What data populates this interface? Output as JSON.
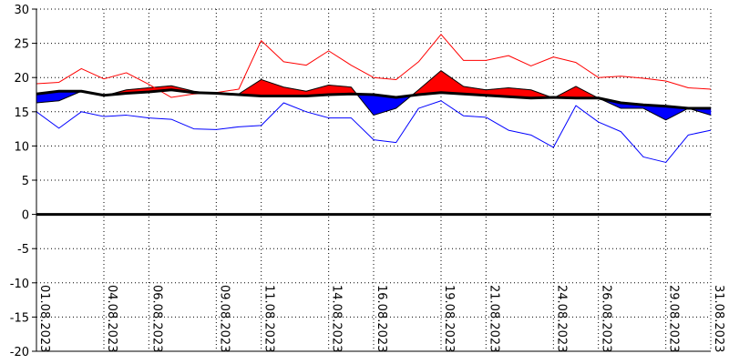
{
  "chart_data": {
    "type": "line",
    "title": "",
    "xlabel": "",
    "ylabel": "",
    "ylim": [
      -20,
      30
    ],
    "yticks": [
      -20,
      -15,
      -10,
      -5,
      0,
      5,
      10,
      15,
      20,
      25,
      30
    ],
    "grid": "dotted",
    "zero_line": true,
    "colors": {
      "max_line": "#ff0000",
      "min_line": "#0000ff",
      "above_fill": "#ff0000",
      "below_fill": "#0000ff",
      "reference_line": "#000000"
    },
    "x_tick_labels": [
      {
        "day": 1,
        "label": "01.08.2023"
      },
      {
        "day": 4,
        "label": "04.08.2023"
      },
      {
        "day": 6,
        "label": "06.08.2023"
      },
      {
        "day": 9,
        "label": "09.08.2023"
      },
      {
        "day": 11,
        "label": "11.08.2023"
      },
      {
        "day": 14,
        "label": "14.08.2023"
      },
      {
        "day": 16,
        "label": "16.08.2023"
      },
      {
        "day": 19,
        "label": "19.08.2023"
      },
      {
        "day": 21,
        "label": "21.08.2023"
      },
      {
        "day": 24,
        "label": "24.08.2023"
      },
      {
        "day": 26,
        "label": "26.08.2023"
      },
      {
        "day": 29,
        "label": "29.08.2023"
      },
      {
        "day": 31,
        "label": "31.08.2023"
      }
    ],
    "x": [
      1,
      2,
      3,
      4,
      5,
      6,
      7,
      8,
      9,
      10,
      11,
      12,
      13,
      14,
      15,
      16,
      17,
      18,
      19,
      20,
      21,
      22,
      23,
      24,
      25,
      26,
      27,
      28,
      29,
      30,
      31
    ],
    "series": [
      {
        "values": [
          19.1,
          19.3,
          21.3,
          19.8,
          20.7,
          19.0,
          17.1,
          17.6,
          17.8,
          18.3,
          25.4,
          22.3,
          21.8,
          23.9,
          21.8,
          20.0,
          19.7,
          22.3,
          26.3,
          22.5,
          22.5,
          23.2,
          21.7,
          23.0,
          22.2,
          20.0,
          20.2,
          19.9,
          19.5,
          18.5,
          18.3
        ]
      },
      {
        "values": [
          15.0,
          12.6,
          15.0,
          14.3,
          14.5,
          14.1,
          13.9,
          12.5,
          12.4,
          12.8,
          13.0,
          16.3,
          15.0,
          14.1,
          14.1,
          10.9,
          10.5,
          15.5,
          16.6,
          14.4,
          14.2,
          12.3,
          11.6,
          9.8,
          15.9,
          13.5,
          12.1,
          8.4,
          7.6,
          11.6,
          12.3
        ]
      },
      {
        "values": [
          16.3,
          16.6,
          18.0,
          17.3,
          18.2,
          18.5,
          18.8,
          18.0,
          17.6,
          17.6,
          19.7,
          18.6,
          18.0,
          18.9,
          18.6,
          14.5,
          15.5,
          18.2,
          21.0,
          18.7,
          18.2,
          18.5,
          18.2,
          17.0,
          18.7,
          17.0,
          15.5,
          15.5,
          13.8,
          15.5,
          14.5
        ]
      },
      {
        "values": [
          17.6,
          18.0,
          18.0,
          17.4,
          17.7,
          17.9,
          18.2,
          17.8,
          17.7,
          17.5,
          17.3,
          17.3,
          17.3,
          17.5,
          17.6,
          17.5,
          17.1,
          17.5,
          17.8,
          17.6,
          17.4,
          17.2,
          17.0,
          17.1,
          17.0,
          17.0,
          16.3,
          16.0,
          15.8,
          15.5,
          15.5
        ]
      }
    ]
  }
}
